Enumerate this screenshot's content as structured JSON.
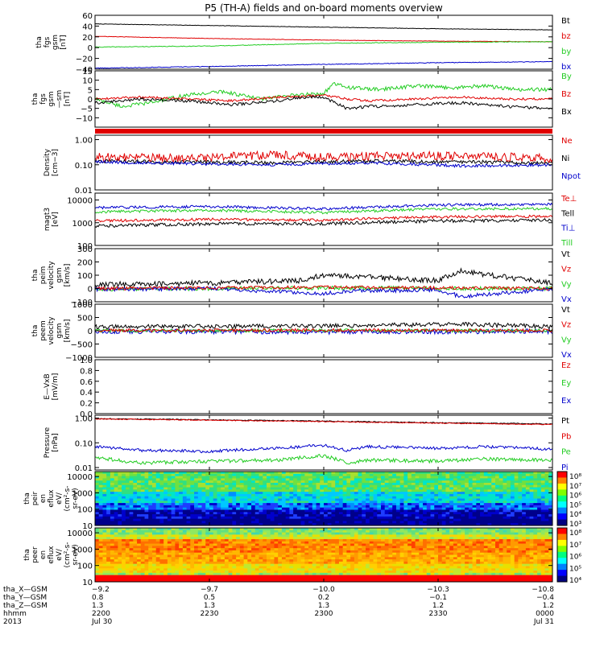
{
  "title": "P5 (TH-A) fields and on-board moments overview",
  "colors": {
    "black": "#000000",
    "red": "#e00000",
    "green": "#22cc22",
    "blue": "#0000cc"
  },
  "chart_data": {
    "type": "line",
    "panels": [
      {
        "ylabel": [
          "tha",
          "fgs",
          "gsm",
          "[nT]"
        ],
        "yscale": "linear",
        "ylim": [
          -40,
          60
        ],
        "ticks": [
          "60",
          "40",
          "20",
          "0",
          "−20",
          "−40"
        ],
        "tickvals": [
          60,
          40,
          20,
          0,
          -20,
          -40
        ],
        "legend": [
          {
            "label": "Bt",
            "color": "black"
          },
          {
            "label": "bz",
            "color": "red"
          },
          {
            "label": "by",
            "color": "green"
          },
          {
            "label": "bx",
            "color": "blue"
          }
        ],
        "series": [
          {
            "color": "black",
            "x": [
              0,
              0.25,
              0.5,
              0.75,
              1
            ],
            "y": [
              44,
              41,
              38,
              35,
              33
            ],
            "noise": 0.4
          },
          {
            "color": "red",
            "x": [
              0,
              0.25,
              0.5,
              0.75,
              1
            ],
            "y": [
              21,
              17,
              14,
              12,
              11
            ],
            "noise": 0.4
          },
          {
            "color": "green",
            "x": [
              0,
              0.25,
              0.5,
              0.75,
              1
            ],
            "y": [
              1,
              3,
              8,
              10,
              11
            ],
            "noise": 0.6
          },
          {
            "color": "blue",
            "x": [
              0,
              0.25,
              0.5,
              0.75,
              1
            ],
            "y": [
              -38,
              -35,
              -31,
              -28,
              -26
            ],
            "noise": 0.6
          }
        ]
      },
      {
        "ylabel": [
          "tha",
          "fgs",
          "gsm",
          "—sm",
          "[nT]"
        ],
        "yscale": "linear",
        "ylim": [
          -15,
          15
        ],
        "ticks": [
          "15",
          "10",
          "5",
          "0",
          "−5",
          "−10"
        ],
        "tickvals": [
          15,
          10,
          5,
          0,
          -5,
          -10
        ],
        "legend": [
          {
            "label": "By",
            "color": "green"
          },
          {
            "label": "Bz",
            "color": "red"
          },
          {
            "label": "Bx",
            "color": "black"
          }
        ],
        "series": [
          {
            "color": "green",
            "x": [
              0,
              0.06,
              0.12,
              0.2,
              0.28,
              0.36,
              0.44,
              0.5,
              0.52,
              0.56,
              0.62,
              0.7,
              0.78,
              0.85,
              0.92,
              1
            ],
            "y": [
              0,
              -4,
              -2,
              2,
              4,
              0,
              2,
              3,
              8,
              6,
              5,
              7,
              6,
              7,
              5,
              5
            ],
            "noise": 1
          },
          {
            "color": "red",
            "x": [
              0,
              0.1,
              0.2,
              0.3,
              0.4,
              0.5,
              0.55,
              0.6,
              0.7,
              0.8,
              0.9,
              1
            ],
            "y": [
              0,
              1,
              0,
              -1,
              1,
              2,
              0,
              -1,
              0,
              1,
              0,
              0
            ],
            "noise": 0.6
          },
          {
            "color": "black",
            "x": [
              0,
              0.1,
              0.2,
              0.3,
              0.4,
              0.45,
              0.5,
              0.55,
              0.6,
              0.7,
              0.8,
              0.9,
              1
            ],
            "y": [
              -2,
              0,
              -1,
              -3,
              -1,
              1,
              1,
              -5,
              -4,
              -3,
              -2,
              -4,
              -5
            ],
            "noise": 0.8
          }
        ],
        "bar": "red"
      },
      {
        "ylabel": [
          "Density",
          "[cm−3]"
        ],
        "yscale": "log",
        "ylim": [
          0.01,
          1.5
        ],
        "ticks": [
          "1.00",
          "0.10",
          "0.01"
        ],
        "tickvals": [
          1,
          0.1,
          0.01
        ],
        "legend": [
          {
            "label": "Ne",
            "color": "red"
          },
          {
            "label": "Ni",
            "color": "black"
          },
          {
            "label": "Npot",
            "color": "blue"
          }
        ],
        "series": [
          {
            "color": "black",
            "x": [
              0,
              0.2,
              0.4,
              0.6,
              0.8,
              1
            ],
            "y": [
              0.14,
              0.13,
              0.12,
              0.14,
              0.13,
              0.12
            ],
            "noise": 0.06
          },
          {
            "color": "red",
            "x": [
              0,
              0.2,
              0.4,
              0.5,
              0.6,
              0.8,
              1
            ],
            "y": [
              0.2,
              0.18,
              0.25,
              0.2,
              0.22,
              0.23,
              0.18
            ],
            "noise": 0.14
          },
          {
            "color": "blue",
            "x": [
              0,
              0.2,
              0.4,
              0.6,
              0.8,
              1
            ],
            "y": [
              0.13,
              0.11,
              0.1,
              0.12,
              0.09,
              0.1
            ],
            "noise": 0.05
          }
        ]
      },
      {
        "ylabel": [
          "magt3",
          "[eV]"
        ],
        "yscale": "log",
        "ylim": [
          100,
          20000
        ],
        "ticks": [
          "10000",
          "1000",
          "100"
        ],
        "tickvals": [
          10000,
          1000,
          100
        ],
        "legend": [
          {
            "label": "Te⊥",
            "color": "red"
          },
          {
            "label": "Tell",
            "color": "black"
          },
          {
            "label": "Ti⊥",
            "color": "blue"
          },
          {
            "label": "Till",
            "color": "green"
          }
        ],
        "series": [
          {
            "color": "blue",
            "x": [
              0,
              0.25,
              0.5,
              0.75,
              1
            ],
            "y": [
              4500,
              5200,
              4000,
              6000,
              6500
            ],
            "noise": 0.05
          },
          {
            "color": "green",
            "x": [
              0,
              0.25,
              0.5,
              0.75,
              1
            ],
            "y": [
              3000,
              3500,
              2800,
              4000,
              4200
            ],
            "noise": 0.05
          },
          {
            "color": "red",
            "x": [
              0,
              0.25,
              0.5,
              0.75,
              1
            ],
            "y": [
              1200,
              1400,
              1300,
              1800,
              1900
            ],
            "noise": 0.05
          },
          {
            "color": "black",
            "x": [
              0,
              0.25,
              0.5,
              0.75,
              1
            ],
            "y": [
              700,
              900,
              900,
              1200,
              1300
            ],
            "noise": 0.06
          }
        ]
      },
      {
        "ylabel": [
          "tha",
          "peim",
          "velocity",
          "gsm",
          "[km/s]"
        ],
        "yscale": "linear",
        "ylim": [
          -100,
          300
        ],
        "ticks": [
          "300",
          "200",
          "100",
          "0",
          "−100"
        ],
        "tickvals": [
          300,
          200,
          100,
          0,
          -100
        ],
        "legend": [
          {
            "label": "Vt",
            "color": "black"
          },
          {
            "label": "Vz",
            "color": "red"
          },
          {
            "label": "Vy",
            "color": "green"
          },
          {
            "label": "Vx",
            "color": "blue"
          }
        ],
        "series": [
          {
            "color": "green",
            "x": [
              0,
              0.25,
              0.5,
              0.75,
              1
            ],
            "y": [
              -5,
              0,
              5,
              0,
              0
            ],
            "noise": 15
          },
          {
            "color": "blue",
            "x": [
              0,
              0.25,
              0.5,
              0.55,
              0.75,
              0.8,
              1
            ],
            "y": [
              -5,
              0,
              -40,
              -20,
              -10,
              -60,
              -5
            ],
            "noise": 15
          },
          {
            "color": "red",
            "x": [
              0,
              0.25,
              0.5,
              0.75,
              1
            ],
            "y": [
              0,
              5,
              10,
              5,
              0
            ],
            "noise": 12
          },
          {
            "color": "black",
            "x": [
              0,
              0.25,
              0.45,
              0.5,
              0.75,
              0.8,
              1
            ],
            "y": [
              30,
              40,
              60,
              100,
              60,
              130,
              40
            ],
            "noise": 20
          }
        ]
      },
      {
        "ylabel": [
          "tha",
          "peem",
          "velocity",
          "gsm",
          "[km/s]"
        ],
        "yscale": "linear",
        "ylim": [
          -1000,
          1000
        ],
        "ticks": [
          "1000",
          "500",
          "0",
          "−500",
          "−1000"
        ],
        "tickvals": [
          1000,
          500,
          0,
          -500,
          -1000
        ],
        "legend": [
          {
            "label": "Vt",
            "color": "black"
          },
          {
            "label": "Vz",
            "color": "red"
          },
          {
            "label": "Vy",
            "color": "green"
          },
          {
            "label": "Vx",
            "color": "blue"
          }
        ],
        "series": [
          {
            "color": "blue",
            "x": [
              0,
              0.5,
              1
            ],
            "y": [
              -20,
              -40,
              -20
            ],
            "noise": 90
          },
          {
            "color": "green",
            "x": [
              0,
              0.5,
              1
            ],
            "y": [
              0,
              10,
              0
            ],
            "noise": 60
          },
          {
            "color": "red",
            "x": [
              0,
              0.5,
              1
            ],
            "y": [
              10,
              20,
              10
            ],
            "noise": 60
          },
          {
            "color": "black",
            "x": [
              0,
              0.5,
              0.8,
              1
            ],
            "y": [
              150,
              180,
              250,
              150
            ],
            "noise": 80
          }
        ]
      },
      {
        "ylabel": [
          "E—VxB",
          "[mV/m]"
        ],
        "yscale": "linear",
        "ylim": [
          0,
          1
        ],
        "ticks": [
          "1.0",
          "0.8",
          "0.6",
          "0.4",
          "0.2",
          "0.0"
        ],
        "tickvals": [
          1,
          0.8,
          0.6,
          0.4,
          0.2,
          0
        ],
        "legend": [
          {
            "label": "Ez",
            "color": "red"
          },
          {
            "label": "Ey",
            "color": "green"
          },
          {
            "label": "Ex",
            "color": "blue"
          }
        ],
        "series": []
      },
      {
        "ylabel": [
          "Pressure",
          "[nPa]"
        ],
        "yscale": "log",
        "ylim": [
          0.008,
          1.3
        ],
        "ticks": [
          "1.00",
          "0.10",
          "0.01"
        ],
        "tickvals": [
          1,
          0.1,
          0.01
        ],
        "legend": [
          {
            "label": "Pt",
            "color": "black"
          },
          {
            "label": "Pb",
            "color": "red"
          },
          {
            "label": "Pe",
            "color": "green"
          },
          {
            "label": "Pi",
            "color": "blue"
          }
        ],
        "series": [
          {
            "color": "black",
            "x": [
              0,
              0.25,
              0.5,
              0.75,
              1
            ],
            "y": [
              0.95,
              0.85,
              0.75,
              0.65,
              0.58
            ],
            "noise": 0.015
          },
          {
            "color": "red",
            "x": [
              0,
              0.25,
              0.5,
              0.75,
              1
            ],
            "y": [
              0.92,
              0.82,
              0.72,
              0.62,
              0.55
            ],
            "noise": 0.015
          },
          {
            "color": "blue",
            "x": [
              0,
              0.1,
              0.25,
              0.4,
              0.5,
              0.55,
              0.6,
              0.75,
              0.85,
              1
            ],
            "y": [
              0.07,
              0.05,
              0.045,
              0.06,
              0.08,
              0.05,
              0.07,
              0.06,
              0.07,
              0.055
            ],
            "noise": 0.05
          },
          {
            "color": "green",
            "x": [
              0,
              0.1,
              0.25,
              0.4,
              0.5,
              0.55,
              0.6,
              0.75,
              0.85,
              1
            ],
            "y": [
              0.025,
              0.015,
              0.018,
              0.02,
              0.03,
              0.015,
              0.02,
              0.018,
              0.022,
              0.02
            ],
            "noise": 0.06
          }
        ]
      },
      {
        "type": "heatmap",
        "ylabel": [
          "tha",
          "peir",
          "en",
          "eflux",
          "eV/",
          "(cm²-s-",
          "sr-eV)"
        ],
        "yscale": "log",
        "ylim": [
          10,
          20000
        ],
        "ticks": [
          "10000",
          "1000",
          "100",
          "10"
        ],
        "tickvals": [
          10000,
          1000,
          100,
          10
        ],
        "colorbar": [
          "10⁸",
          "10⁷",
          "10⁶",
          "10⁵",
          "10⁴",
          "10³"
        ]
      },
      {
        "type": "heatmap",
        "ylabel": [
          "tha",
          "peer",
          "en",
          "eflux",
          "eV/",
          "(cm²-s-",
          "sr-eV)"
        ],
        "yscale": "log",
        "ylim": [
          10,
          20000
        ],
        "ticks": [
          "10000",
          "1000",
          "100",
          "10"
        ],
        "tickvals": [
          10000,
          1000,
          100,
          10
        ],
        "colorbar": [
          "10⁸",
          "10⁷",
          "10⁶",
          "10⁵",
          "10⁴"
        ]
      }
    ],
    "x_axis": {
      "rows": [
        {
          "label": "tha_X—GSM",
          "values": [
            "−9.2",
            "−9.7",
            "−10.0",
            "−10.3",
            "−10.8"
          ]
        },
        {
          "label": "tha_Y—GSM",
          "values": [
            "0.8",
            "0.5",
            "0.2",
            "−0.1",
            "−0.4"
          ]
        },
        {
          "label": "tha_Z—GSM",
          "values": [
            "1.3",
            "1.3",
            "1.3",
            "1.2",
            "1.2"
          ]
        },
        {
          "label": "hhmm",
          "values": [
            "2200",
            "2230",
            "2300",
            "2330",
            "0000"
          ]
        },
        {
          "label": "2013",
          "values": [
            "Jul 30",
            "",
            "",
            "",
            "Jul 31"
          ]
        }
      ]
    }
  }
}
